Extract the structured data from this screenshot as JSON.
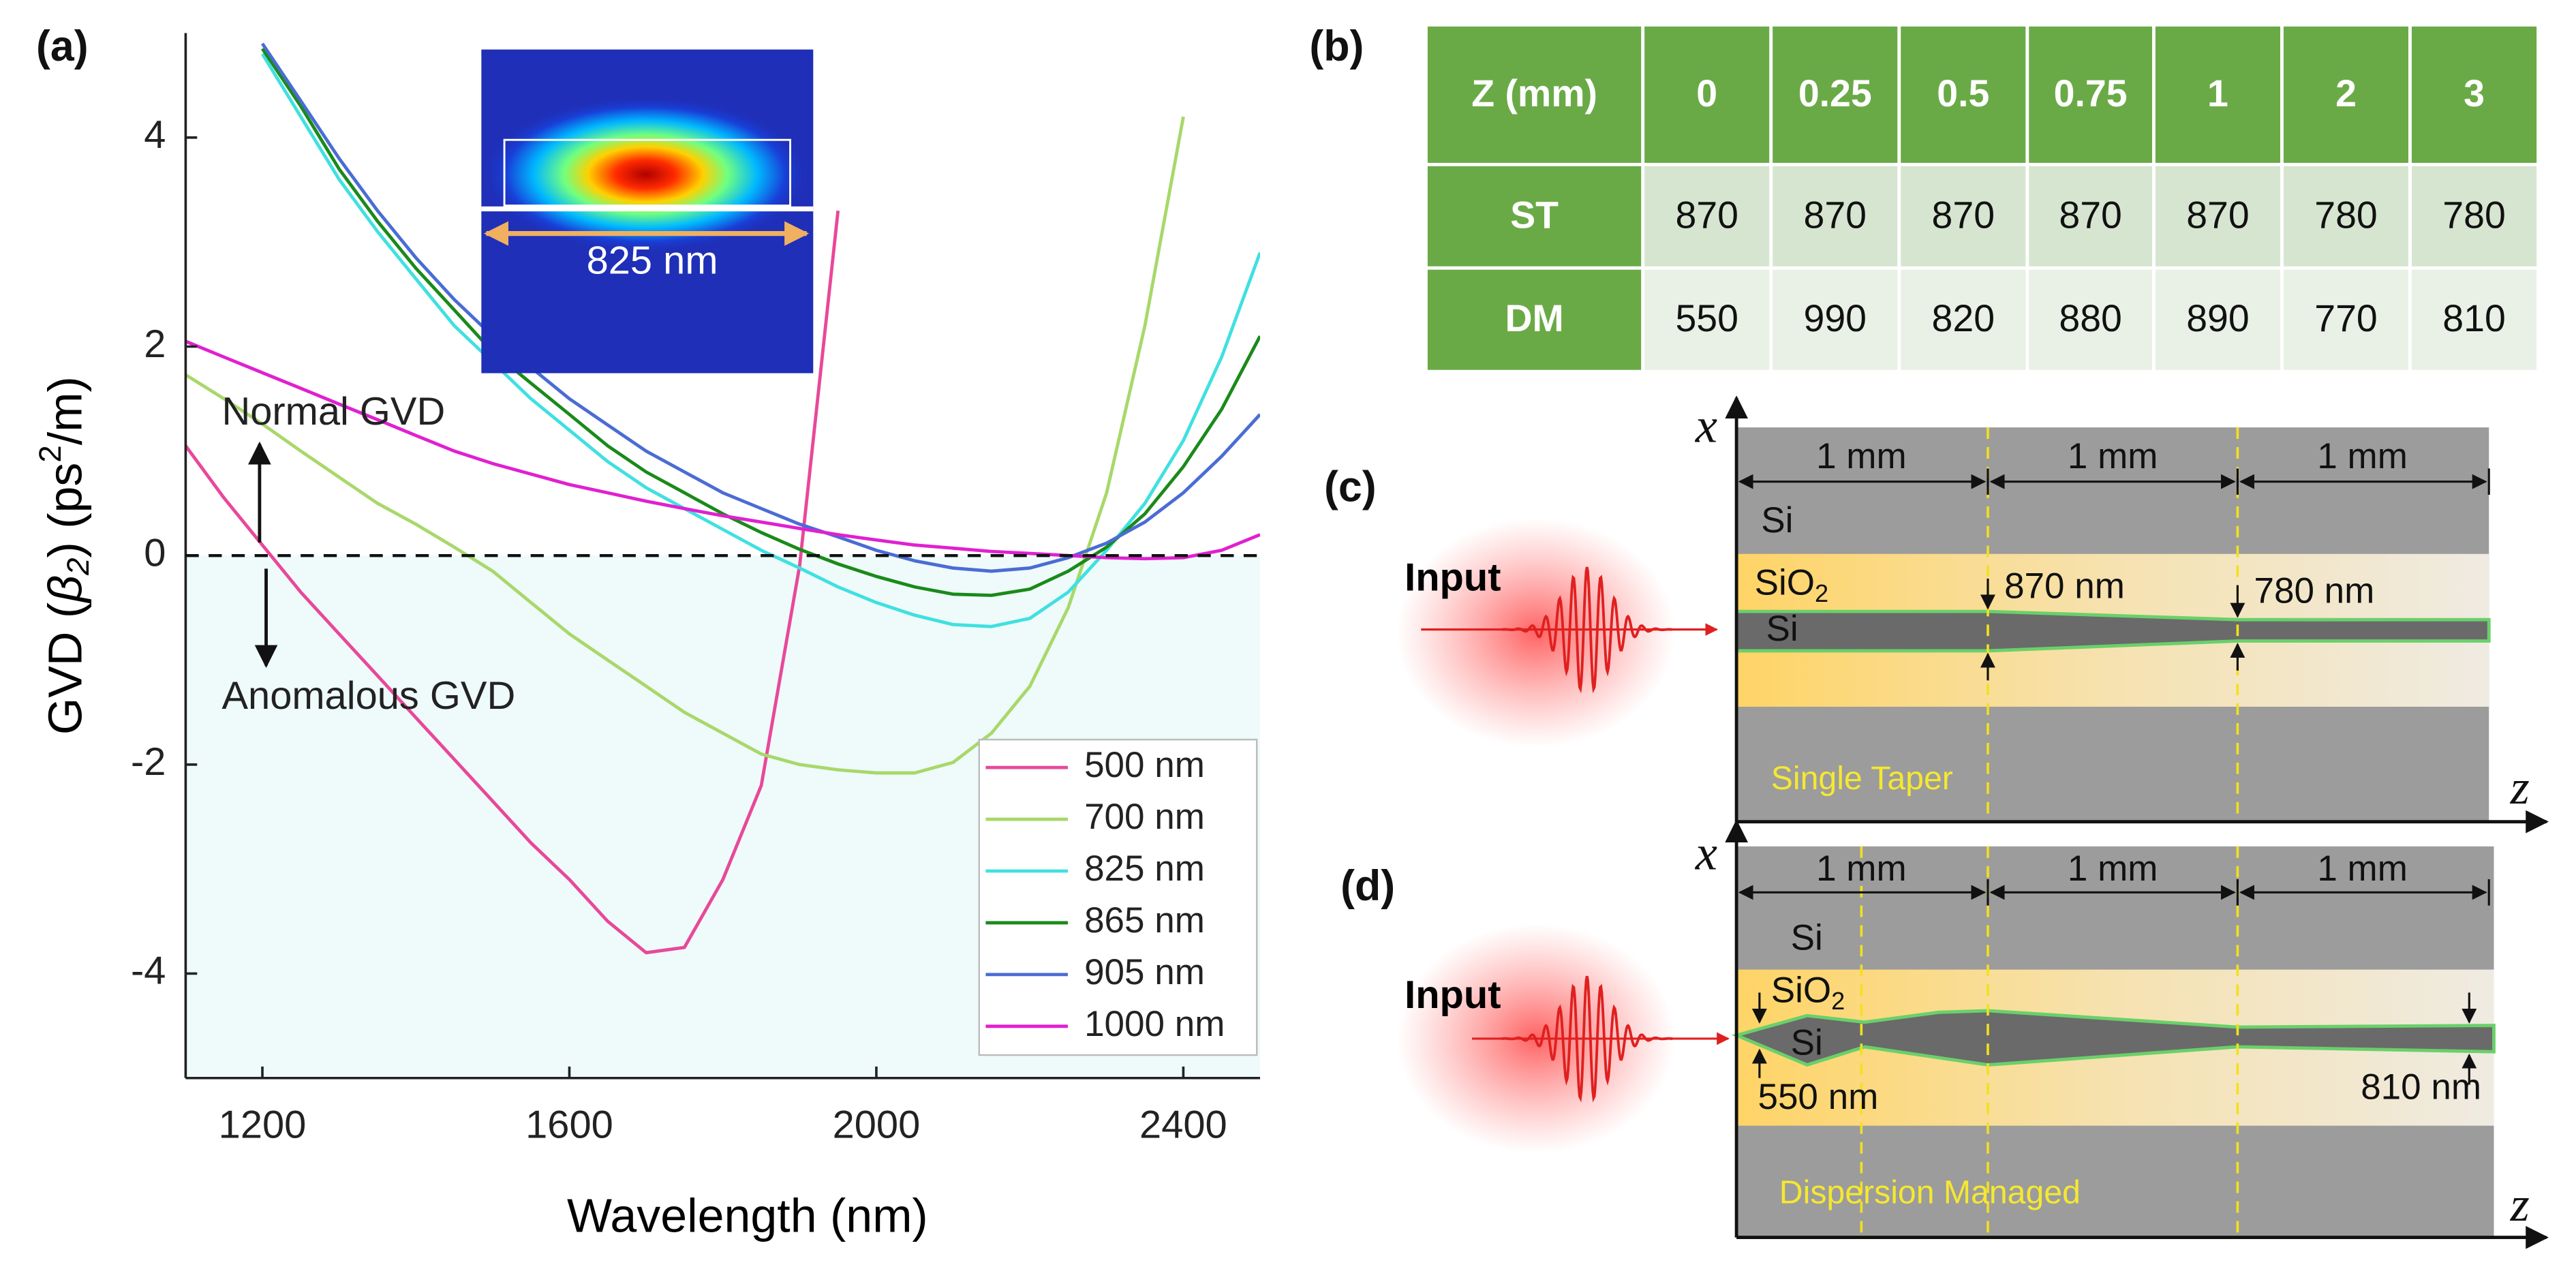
{
  "chart_data": {
    "type": "line",
    "panel_label": "(a)",
    "xlabel": "Wavelength (nm)",
    "ylabel": [
      "GVD (",
      "β",
      "2",
      ") (ps",
      "2",
      "/m)"
    ],
    "annotations": [
      "Normal GVD",
      "Anomalous GVD"
    ],
    "inset_label": "825 nm",
    "x": [
      1100,
      1150,
      1200,
      1250,
      1300,
      1350,
      1400,
      1450,
      1500,
      1550,
      1600,
      1650,
      1700,
      1750,
      1800,
      1850,
      1900,
      1950,
      2000,
      2050,
      2100,
      2150,
      2200,
      2250,
      2300,
      2350,
      2400,
      2450,
      2500
    ],
    "series": [
      {
        "name": "500 nm",
        "color": "#e8489a",
        "values": [
          1.05,
          0.55,
          0.1,
          -0.35,
          -0.75,
          -1.15,
          -1.55,
          -1.95,
          -2.35,
          -2.75,
          -3.1,
          -3.5,
          -3.8,
          -3.75,
          -3.1,
          -2.2,
          -0.1,
          3.3,
          null,
          null,
          null,
          null,
          null,
          null,
          null,
          null,
          null,
          null,
          null
        ]
      },
      {
        "name": "700 nm",
        "color": "#a8d86a",
        "values": [
          1.73,
          1.5,
          1.26,
          1.0,
          0.75,
          0.5,
          0.3,
          0.08,
          -0.15,
          -0.45,
          -0.75,
          -1.0,
          -1.25,
          -1.5,
          -1.7,
          -1.9,
          -2.0,
          -2.05,
          -2.08,
          -2.08,
          -1.98,
          -1.7,
          -1.25,
          -0.5,
          0.6,
          2.2,
          4.2,
          null,
          null
        ]
      },
      {
        "name": "825 nm",
        "color": "#40e0e0",
        "values": [
          null,
          null,
          4.8,
          4.2,
          3.6,
          3.1,
          2.65,
          2.2,
          1.85,
          1.5,
          1.2,
          0.9,
          0.65,
          0.45,
          0.25,
          0.05,
          -0.12,
          -0.3,
          -0.45,
          -0.57,
          -0.66,
          -0.68,
          -0.6,
          -0.35,
          0.05,
          0.5,
          1.1,
          1.9,
          2.9
        ]
      },
      {
        "name": "865 nm",
        "color": "#1a8a1a",
        "values": [
          null,
          null,
          4.85,
          4.3,
          3.7,
          3.2,
          2.75,
          2.35,
          1.95,
          1.65,
          1.35,
          1.05,
          0.8,
          0.6,
          0.4,
          0.22,
          0.06,
          -0.08,
          -0.2,
          -0.3,
          -0.37,
          -0.38,
          -0.32,
          -0.15,
          0.08,
          0.4,
          0.85,
          1.4,
          2.1
        ]
      },
      {
        "name": "905 nm",
        "color": "#4a6cd4",
        "values": [
          null,
          null,
          4.9,
          4.35,
          3.8,
          3.3,
          2.85,
          2.45,
          2.1,
          1.8,
          1.5,
          1.25,
          1.0,
          0.8,
          0.6,
          0.45,
          0.3,
          0.18,
          0.05,
          -0.05,
          -0.12,
          -0.15,
          -0.12,
          -0.02,
          0.12,
          0.32,
          0.6,
          0.95,
          1.35
        ]
      },
      {
        "name": "1000 nm",
        "color": "#e020d0",
        "values": [
          2.05,
          1.9,
          1.75,
          1.6,
          1.45,
          1.3,
          1.15,
          1.0,
          0.88,
          0.78,
          0.68,
          0.6,
          0.52,
          0.45,
          0.38,
          0.32,
          0.26,
          0.2,
          0.15,
          0.1,
          0.07,
          0.04,
          0.02,
          0.0,
          -0.02,
          -0.03,
          -0.02,
          0.05,
          0.2
        ]
      }
    ],
    "xlim": [
      1100,
      2500
    ],
    "ylim": [
      -5,
      5
    ],
    "xticks": [
      1200,
      1600,
      2000,
      2400
    ],
    "yticks": [
      -4,
      -2,
      0,
      2,
      4
    ],
    "zero_line": true,
    "legend": "lower right"
  },
  "table": {
    "panel_label": "(b)",
    "header": [
      "Z (mm)",
      "0",
      "0.25",
      "0.5",
      "0.75",
      "1",
      "2",
      "3"
    ],
    "rows": [
      [
        "ST",
        "870",
        "870",
        "870",
        "870",
        "870",
        "780",
        "780"
      ],
      [
        "DM",
        "550",
        "990",
        "820",
        "880",
        "890",
        "770",
        "810"
      ]
    ]
  },
  "diagrams": [
    {
      "panel_label": "(c)",
      "x_axis": "x",
      "z_axis": "z",
      "spans": [
        "1 mm",
        "1 mm",
        "1 mm"
      ],
      "top": "Si",
      "oxide": [
        "SiO",
        "2"
      ],
      "core": "Si",
      "widths": [
        "870 nm",
        "780 nm"
      ],
      "input": "Input",
      "name": "Single Taper"
    },
    {
      "panel_label": "(d)",
      "x_axis": "x",
      "z_axis": "z",
      "spans": [
        "1 mm",
        "1 mm",
        "1 mm"
      ],
      "top": "Si",
      "oxide": [
        "SiO",
        "2"
      ],
      "core": "Si",
      "widths": [
        "550 nm",
        "810 nm"
      ],
      "input": "Input",
      "name": "Dispersion Managed"
    }
  ]
}
